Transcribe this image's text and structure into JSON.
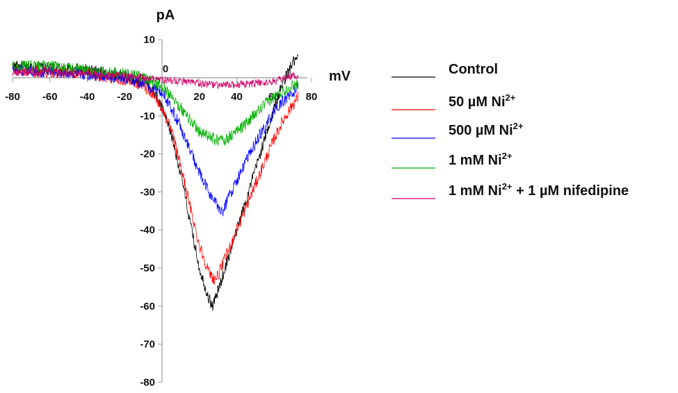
{
  "chart_data": {
    "type": "line",
    "xlabel": "mV",
    "ylabel": "pA",
    "xlim": [
      -80,
      80
    ],
    "ylim": [
      -80,
      10
    ],
    "x_ticks": [
      -80,
      -60,
      -40,
      -20,
      0,
      20,
      40,
      60,
      80
    ],
    "y_ticks": [
      10,
      0,
      -10,
      -20,
      -30,
      -40,
      -50,
      -60,
      -70,
      -80
    ],
    "x_tick_labels": [
      "-80",
      "-60",
      "-40",
      "-20",
      "0",
      "20",
      "40",
      "60",
      "80"
    ],
    "y_tick_labels": [
      "10",
      "0",
      "-10",
      "-20",
      "-30",
      "-40",
      "-50",
      "-60",
      "-70",
      "-80"
    ],
    "origin_label": "0",
    "grid": false,
    "legend_position": "right",
    "series": [
      {
        "name": "Control",
        "label_main": "Control",
        "label_sup": "",
        "label_tail": "",
        "color": "#000000",
        "x": [
          -80,
          -60,
          -40,
          -20,
          -10,
          -5,
          0,
          5,
          10,
          15,
          20,
          25,
          27,
          30,
          35,
          40,
          45,
          50,
          55,
          60,
          65,
          70,
          73
        ],
        "y": [
          3,
          2.5,
          2,
          0.5,
          -1,
          -3,
          -8,
          -15,
          -25,
          -38,
          -50,
          -58,
          -60,
          -56,
          -48,
          -40,
          -32,
          -24,
          -16,
          -8,
          -1,
          4,
          5
        ]
      },
      {
        "name": "50 µM Ni2+",
        "label_main": "50 µM Ni",
        "label_sup": "2+",
        "label_tail": "",
        "color": "#ff0000",
        "x": [
          -80,
          -60,
          -40,
          -20,
          -10,
          -5,
          0,
          5,
          10,
          15,
          20,
          25,
          28,
          30,
          35,
          40,
          45,
          50,
          55,
          60,
          65,
          70,
          73
        ],
        "y": [
          2,
          1.5,
          1,
          -0.5,
          -2,
          -4,
          -8,
          -14,
          -23,
          -34,
          -44,
          -51,
          -53,
          -52,
          -46,
          -40,
          -34,
          -28,
          -22,
          -16,
          -11,
          -7,
          -5
        ]
      },
      {
        "name": "500 µM Ni2+",
        "label_main": "500 µM Ni",
        "label_sup": "2+",
        "label_tail": "",
        "color": "#0000ff",
        "x": [
          -80,
          -60,
          -40,
          -20,
          -10,
          0,
          5,
          10,
          15,
          20,
          25,
          30,
          33,
          35,
          40,
          45,
          50,
          55,
          60,
          65,
          70,
          73
        ],
        "y": [
          2,
          1.5,
          1,
          0,
          -1.5,
          -4,
          -8,
          -13,
          -19,
          -25,
          -30,
          -34,
          -35,
          -32,
          -27,
          -22,
          -17,
          -13,
          -9,
          -6,
          -4,
          -3
        ]
      },
      {
        "name": "1 mM Ni2+",
        "label_main": "1 mM Ni",
        "label_sup": "2+",
        "label_tail": "",
        "color": "#00b000",
        "x": [
          -80,
          -60,
          -40,
          -20,
          -10,
          0,
          5,
          10,
          15,
          20,
          25,
          30,
          35,
          40,
          45,
          50,
          55,
          60,
          65,
          70,
          73
        ],
        "y": [
          3,
          3,
          2,
          1,
          0,
          -2,
          -4.5,
          -8,
          -11,
          -14,
          -15.5,
          -16.5,
          -16,
          -14,
          -12,
          -9.5,
          -7,
          -5,
          -3.5,
          -2,
          -1.5
        ]
      },
      {
        "name": "1 mM Ni2+ + 1 µM nifedipine",
        "label_main": "1 mM Ni",
        "label_sup": "2+",
        "label_tail": " + 1 µM nifedipine",
        "color": "#cc0066",
        "x": [
          -80,
          -60,
          -40,
          -20,
          0,
          10,
          20,
          30,
          40,
          50,
          60,
          70,
          73
        ],
        "y": [
          1.5,
          1.5,
          1,
          0.5,
          -0.5,
          -1,
          -1.5,
          -2,
          -1.8,
          -1.5,
          -1,
          0.5,
          0.5
        ]
      }
    ]
  }
}
